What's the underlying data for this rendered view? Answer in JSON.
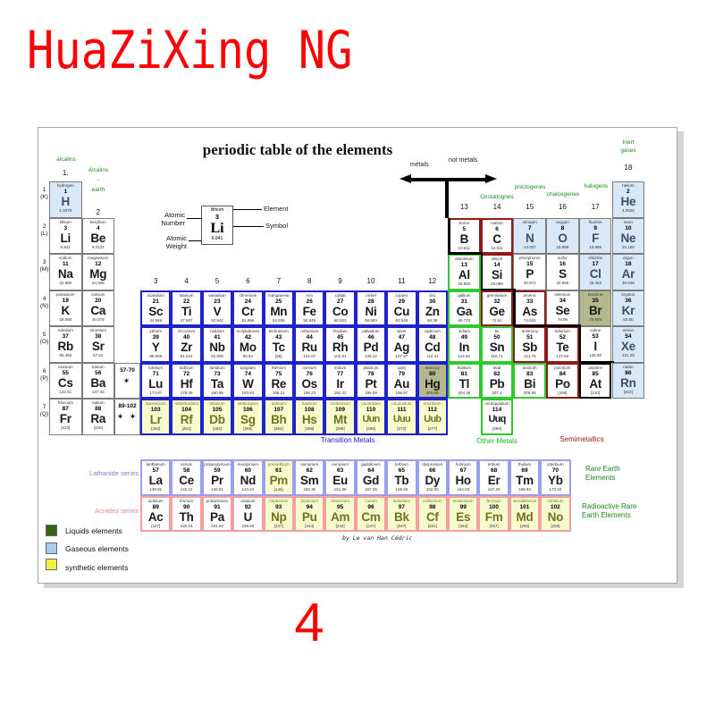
{
  "brand": "HuaZiXing NG",
  "page_number": "4",
  "poster": {
    "title": "periodic table of the elements",
    "credit": "by Le van Han Cédric",
    "arrow_labels": {
      "metals": "métals",
      "not_metals": "not metals"
    },
    "family_labels": {
      "alcalins": "alcalins",
      "alcalins_earth": "Alcalins\n-\nearth",
      "cristallognes": "Cristallognes",
      "pnictogenes": "pnictogenes",
      "chalcogenes": "chalcogenes",
      "halogens": "halogens",
      "inert_gases": "Inert\ngases"
    },
    "block_labels": {
      "transition": "Transition Metals",
      "other": "Other Metals",
      "semi": "Semimetallics"
    },
    "series_labels": {
      "lanthanide": "Lathanide series",
      "actinide": "Acnides series",
      "rare_earth": "Rare Earth\nElements",
      "radioactive": "Radioactive Rare\nEarth Elements"
    },
    "explainer": {
      "name": "lithium",
      "number": "3",
      "symbol": "Li",
      "weight": "6.941",
      "atomic_number_label": "Atomic\nNumber",
      "atomic_weight_label": "Atomic\nWeight",
      "element_label": "Element",
      "symbol_label": "Symbol"
    },
    "legend": [
      {
        "color": "#33660a",
        "label": "Liquids elements"
      },
      {
        "color": "#a8ccee",
        "label": "Gaseous elements"
      },
      {
        "color": "#f2f23d",
        "label": "synthetic elements"
      }
    ],
    "group_numbers": [
      [
        "1.",
        1,
        46
      ],
      [
        "2",
        2,
        90
      ],
      [
        "3",
        3,
        167
      ],
      [
        "4",
        4,
        167
      ],
      [
        "5",
        5,
        167
      ],
      [
        "6",
        6,
        167
      ],
      [
        "7",
        7,
        167
      ],
      [
        "8",
        8,
        167
      ],
      [
        "9",
        9,
        167
      ],
      [
        "10",
        10,
        167
      ],
      [
        "11",
        11,
        167
      ],
      [
        "12",
        12,
        167
      ],
      [
        "13",
        13,
        84
      ],
      [
        "14",
        14,
        84
      ],
      [
        "15",
        15,
        84
      ],
      [
        "16",
        16,
        84
      ],
      [
        "17",
        17,
        84
      ],
      [
        "18",
        18,
        40
      ]
    ],
    "period_labels": [
      "1\n(K)",
      "2\n(L)",
      "3\n(M)",
      "4\n(N)",
      "5\n(O)",
      "6\n(P)",
      "7\n(Q)"
    ],
    "placeholders": [
      {
        "row": 6,
        "range": "57-70",
        "stars": "✶"
      },
      {
        "row": 7,
        "range": "89-102",
        "stars": "✶ ✶"
      }
    ],
    "elements": [
      [
        1,
        1,
        "1",
        "H",
        "hydrogen",
        "1.0079",
        "g",
        "d"
      ],
      [
        1,
        18,
        "2",
        "He",
        "helium",
        "4.0026",
        "g",
        "d"
      ],
      [
        2,
        1,
        "3",
        "Li",
        "lithium",
        "6.941",
        "w",
        "d"
      ],
      [
        2,
        2,
        "4",
        "Be",
        "beryllium",
        "9.0122",
        "w",
        "d"
      ],
      [
        2,
        13,
        "5",
        "B",
        "boron",
        "10.811",
        "w",
        "r"
      ],
      [
        2,
        14,
        "6",
        "C",
        "carbon",
        "12.011",
        "w",
        "r"
      ],
      [
        2,
        15,
        "7",
        "N",
        "nitrogen",
        "14.007",
        "g",
        "d"
      ],
      [
        2,
        16,
        "8",
        "O",
        "oxygen",
        "15.999",
        "g",
        "d"
      ],
      [
        2,
        17,
        "9",
        "F",
        "fluorine",
        "18.998",
        "g",
        "d"
      ],
      [
        2,
        18,
        "10",
        "Ne",
        "neon",
        "20.180",
        "g",
        "d"
      ],
      [
        3,
        1,
        "11",
        "Na",
        "sodium",
        "22.990",
        "w",
        "d"
      ],
      [
        3,
        2,
        "12",
        "Mg",
        "magnesium",
        "24.305",
        "w",
        "d"
      ],
      [
        3,
        13,
        "13",
        "Al",
        "aluminium",
        "26.982",
        "w",
        "gr"
      ],
      [
        3,
        14,
        "14",
        "Si",
        "silicon",
        "28.086",
        "w",
        "r"
      ],
      [
        3,
        15,
        "15",
        "P",
        "phosphorus",
        "30.974",
        "w",
        "d"
      ],
      [
        3,
        16,
        "16",
        "S",
        "sulfur",
        "32.065",
        "w",
        "d"
      ],
      [
        3,
        17,
        "17",
        "Cl",
        "chlorine",
        "35.453",
        "g",
        "d"
      ],
      [
        3,
        18,
        "18",
        "Ar",
        "argon",
        "39.948",
        "g",
        "d"
      ],
      [
        4,
        1,
        "19",
        "K",
        "potassium",
        "39.098",
        "w",
        "d"
      ],
      [
        4,
        2,
        "20",
        "Ca",
        "calcium",
        "40.078",
        "w",
        "d"
      ],
      [
        4,
        3,
        "21",
        "Sc",
        "scandium",
        "44.956",
        "w",
        "b"
      ],
      [
        4,
        4,
        "22",
        "Ti",
        "titanium",
        "47.867",
        "w",
        "b"
      ],
      [
        4,
        5,
        "23",
        "V",
        "vanadium",
        "50.942",
        "w",
        "b"
      ],
      [
        4,
        6,
        "24",
        "Cr",
        "chromium",
        "51.996",
        "w",
        "b"
      ],
      [
        4,
        7,
        "25",
        "Mn",
        "manganese",
        "54.938",
        "w",
        "b"
      ],
      [
        4,
        8,
        "26",
        "Fe",
        "iron",
        "55.845",
        "w",
        "b"
      ],
      [
        4,
        9,
        "27",
        "Co",
        "cobalt",
        "58.933",
        "w",
        "b"
      ],
      [
        4,
        10,
        "28",
        "Ni",
        "nickel",
        "58.693",
        "w",
        "b"
      ],
      [
        4,
        11,
        "29",
        "Cu",
        "copper",
        "63.546",
        "w",
        "b"
      ],
      [
        4,
        12,
        "30",
        "Zn",
        "zinc",
        "65.39",
        "w",
        "b"
      ],
      [
        4,
        13,
        "31",
        "Ga",
        "gallium",
        "69.723",
        "w",
        "gr"
      ],
      [
        4,
        14,
        "32",
        "Ge",
        "germanium",
        "72.61",
        "w",
        "r"
      ],
      [
        4,
        15,
        "33",
        "As",
        "arsenic",
        "74.922",
        "w",
        "r"
      ],
      [
        4,
        16,
        "34",
        "Se",
        "selenium",
        "78.96",
        "w",
        "d"
      ],
      [
        4,
        17,
        "35",
        "Br",
        "bromine",
        "79.904",
        "l",
        "d"
      ],
      [
        4,
        18,
        "36",
        "Kr",
        "krypton",
        "83.80",
        "g",
        "d"
      ],
      [
        5,
        1,
        "37",
        "Rb",
        "rubidium",
        "85.468",
        "w",
        "d"
      ],
      [
        5,
        2,
        "38",
        "Sr",
        "strontium",
        "87.62",
        "w",
        "d"
      ],
      [
        5,
        3,
        "39",
        "Y",
        "yttrium",
        "88.906",
        "w",
        "b"
      ],
      [
        5,
        4,
        "40",
        "Zr",
        "zirconium",
        "91.224",
        "w",
        "b"
      ],
      [
        5,
        5,
        "41",
        "Nb",
        "niobium",
        "92.906",
        "w",
        "b"
      ],
      [
        5,
        6,
        "42",
        "Mo",
        "molybdenum",
        "95.94",
        "w",
        "b"
      ],
      [
        5,
        7,
        "43",
        "Tc",
        "technetium",
        "[98]",
        "w",
        "b"
      ],
      [
        5,
        8,
        "44",
        "Ru",
        "ruthenium",
        "101.07",
        "w",
        "b"
      ],
      [
        5,
        9,
        "45",
        "Rh",
        "rhodium",
        "102.91",
        "w",
        "b"
      ],
      [
        5,
        10,
        "46",
        "Pd",
        "palladium",
        "106.42",
        "w",
        "b"
      ],
      [
        5,
        11,
        "47",
        "Ag",
        "silver",
        "107.87",
        "w",
        "b"
      ],
      [
        5,
        12,
        "48",
        "Cd",
        "cadmium",
        "112.41",
        "w",
        "b"
      ],
      [
        5,
        13,
        "49",
        "In",
        "indium",
        "114.82",
        "w",
        "gr"
      ],
      [
        5,
        14,
        "50",
        "Sn",
        "tin",
        "118.71",
        "w",
        "gr"
      ],
      [
        5,
        15,
        "51",
        "Sb",
        "antimony",
        "121.76",
        "w",
        "r"
      ],
      [
        5,
        16,
        "52",
        "Te",
        "tellurium",
        "127.60",
        "w",
        "r"
      ],
      [
        5,
        17,
        "53",
        "I",
        "iodine",
        "126.90",
        "w",
        "d"
      ],
      [
        5,
        18,
        "54",
        "Xe",
        "xenon",
        "131.29",
        "g",
        "d"
      ],
      [
        6,
        1,
        "55",
        "Cs",
        "caesium",
        "132.91",
        "w",
        "d"
      ],
      [
        6,
        2,
        "56",
        "Ba",
        "barium",
        "137.33",
        "w",
        "d"
      ],
      [
        6,
        3,
        "71",
        "Lu",
        "lutetium",
        "174.97",
        "w",
        "b"
      ],
      [
        6,
        4,
        "72",
        "Hf",
        "hafnium",
        "178.49",
        "w",
        "b"
      ],
      [
        6,
        5,
        "73",
        "Ta",
        "tantalum",
        "180.95",
        "w",
        "b"
      ],
      [
        6,
        6,
        "74",
        "W",
        "tungsten",
        "183.84",
        "w",
        "b"
      ],
      [
        6,
        7,
        "75",
        "Re",
        "rhenium",
        "186.21",
        "w",
        "b"
      ],
      [
        6,
        8,
        "76",
        "Os",
        "osmium",
        "190.23",
        "w",
        "b"
      ],
      [
        6,
        9,
        "77",
        "Ir",
        "iridium",
        "192.22",
        "w",
        "b"
      ],
      [
        6,
        10,
        "78",
        "Pt",
        "platinum",
        "195.08",
        "w",
        "b"
      ],
      [
        6,
        11,
        "79",
        "Au",
        "gold",
        "196.97",
        "w",
        "b"
      ],
      [
        6,
        12,
        "80",
        "Hg",
        "mercury",
        "200.59",
        "l",
        "b"
      ],
      [
        6,
        13,
        "81",
        "Tl",
        "thallium",
        "204.38",
        "w",
        "gr"
      ],
      [
        6,
        14,
        "82",
        "Pb",
        "lead",
        "207.2",
        "w",
        "gr"
      ],
      [
        6,
        15,
        "83",
        "Bi",
        "bismuth",
        "208.98",
        "w",
        "gr"
      ],
      [
        6,
        16,
        "84",
        "Po",
        "polonium",
        "[209]",
        "w",
        "r"
      ],
      [
        6,
        17,
        "85",
        "At",
        "astatine",
        "[210]",
        "w",
        "k"
      ],
      [
        6,
        18,
        "86",
        "Rn",
        "radon",
        "[222]",
        "g",
        "d"
      ],
      [
        7,
        1,
        "87",
        "Fr",
        "francium",
        "[223]",
        "w",
        "d"
      ],
      [
        7,
        2,
        "88",
        "Ra",
        "radium",
        "[226]",
        "w",
        "d"
      ],
      [
        7,
        3,
        "103",
        "Lr",
        "lawrencium",
        "[262]",
        "s",
        "b"
      ],
      [
        7,
        4,
        "104",
        "Rf",
        "rutherfordium",
        "[261]",
        "s",
        "b"
      ],
      [
        7,
        5,
        "105",
        "Db",
        "dubnium",
        "[262]",
        "s",
        "b"
      ],
      [
        7,
        6,
        "106",
        "Sg",
        "seaborgium",
        "[266]",
        "s",
        "b"
      ],
      [
        7,
        7,
        "107",
        "Bh",
        "bohrium",
        "[264]",
        "s",
        "b"
      ],
      [
        7,
        8,
        "108",
        "Hs",
        "hassium",
        "[269]",
        "s",
        "b"
      ],
      [
        7,
        9,
        "109",
        "Mt",
        "meitnerium",
        "[268]",
        "s",
        "b"
      ],
      [
        7,
        10,
        "110",
        "Uun",
        "ununnilium",
        "[269]",
        "s",
        "b"
      ],
      [
        7,
        11,
        "111",
        "Uuu",
        "unununium",
        "[272]",
        "s",
        "b"
      ],
      [
        7,
        12,
        "112",
        "Uub",
        "ununbium",
        "[277]",
        "s",
        "b"
      ],
      [
        7,
        14,
        "114",
        "Uuq",
        "ununquadium",
        "[289]",
        "w",
        "gr"
      ]
    ],
    "lanthanides": [
      [
        "57",
        "La",
        "lanthanum",
        "138.91",
        "w",
        "ln"
      ],
      [
        "58",
        "Ce",
        "cerium",
        "140.12",
        "w",
        "ln"
      ],
      [
        "59",
        "Pr",
        "praseodymium",
        "140.91",
        "w",
        "ln"
      ],
      [
        "60",
        "Nd",
        "neodymium",
        "144.24",
        "w",
        "ln"
      ],
      [
        "61",
        "Pm",
        "promethium",
        "[145]",
        "s",
        "ln"
      ],
      [
        "62",
        "Sm",
        "samarium",
        "150.36",
        "w",
        "ln"
      ],
      [
        "63",
        "Eu",
        "europium",
        "151.96",
        "w",
        "ln"
      ],
      [
        "64",
        "Gd",
        "gadolinium",
        "157.25",
        "w",
        "ln"
      ],
      [
        "65",
        "Tb",
        "terbium",
        "158.93",
        "w",
        "ln"
      ],
      [
        "66",
        "Dy",
        "dysprosium",
        "162.50",
        "w",
        "ln"
      ],
      [
        "67",
        "Ho",
        "holmium",
        "164.93",
        "w",
        "ln"
      ],
      [
        "68",
        "Er",
        "erbium",
        "167.26",
        "w",
        "ln"
      ],
      [
        "69",
        "Tm",
        "thulium",
        "168.93",
        "w",
        "ln"
      ],
      [
        "70",
        "Yb",
        "ytterbium",
        "173.04",
        "w",
        "ln"
      ]
    ],
    "actinides": [
      [
        "89",
        "Ac",
        "actinium",
        "[227]",
        "w",
        "ac"
      ],
      [
        "90",
        "Th",
        "thorium",
        "232.04",
        "w",
        "ac"
      ],
      [
        "91",
        "Pa",
        "protactinium",
        "231.04",
        "w",
        "ac"
      ],
      [
        "92",
        "U",
        "uranium",
        "238.03",
        "w",
        "ac"
      ],
      [
        "93",
        "Np",
        "neptunium",
        "[237]",
        "s",
        "ac"
      ],
      [
        "94",
        "Pu",
        "plutonium",
        "[244]",
        "s",
        "ac"
      ],
      [
        "95",
        "Am",
        "americium",
        "[243]",
        "s",
        "ac"
      ],
      [
        "96",
        "Cm",
        "curium",
        "[247]",
        "s",
        "ac"
      ],
      [
        "97",
        "Bk",
        "berkelium",
        "[247]",
        "s",
        "ac"
      ],
      [
        "98",
        "Cf",
        "californium",
        "[251]",
        "s",
        "ac"
      ],
      [
        "99",
        "Es",
        "einsteinium",
        "[252]",
        "s",
        "ac"
      ],
      [
        "100",
        "Fm",
        "fermium",
        "[257]",
        "s",
        "ac"
      ],
      [
        "101",
        "Md",
        "mendelevium",
        "[258]",
        "s",
        "ac"
      ],
      [
        "102",
        "No",
        "nobelium",
        "[259]",
        "s",
        "ac"
      ]
    ],
    "colors": {
      "brand_red": "#fd0202",
      "gas_fill": "#d9e8f7",
      "liquid_fill": "#b3b98c",
      "synthetic_fill": "#f8fbcd",
      "transition_border": "#2222cc",
      "poor_metal_border": "#2fc92f",
      "metalloid_border": "#8e1a1a",
      "lanthanide_border": "#9e9eee",
      "actinide_border": "#f4a0a0"
    }
  }
}
